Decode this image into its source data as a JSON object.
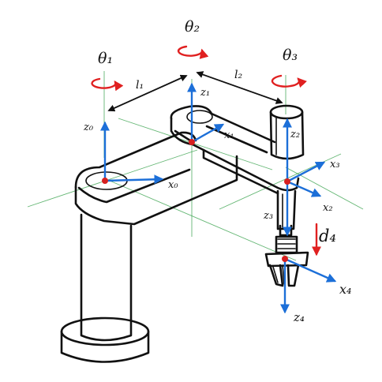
{
  "labels": {
    "theta1": "θ₁",
    "theta2": "θ₂",
    "theta3": "θ₃",
    "l1": "l₁",
    "l2": "l₂",
    "z0": "z₀",
    "x0": "x₀",
    "z1": "z₁",
    "x1": "x₁",
    "z2": "z₂",
    "x2": "x₂",
    "x3": "x₃",
    "z3": "z₃",
    "d4": "d₄",
    "x4": "x₄",
    "z4": "z₄"
  },
  "colors": {
    "ink": "#111111",
    "axis": "#1c6fd8",
    "rotation": "#e02020",
    "joint": "#d62020",
    "guide": "#2f9e44"
  }
}
